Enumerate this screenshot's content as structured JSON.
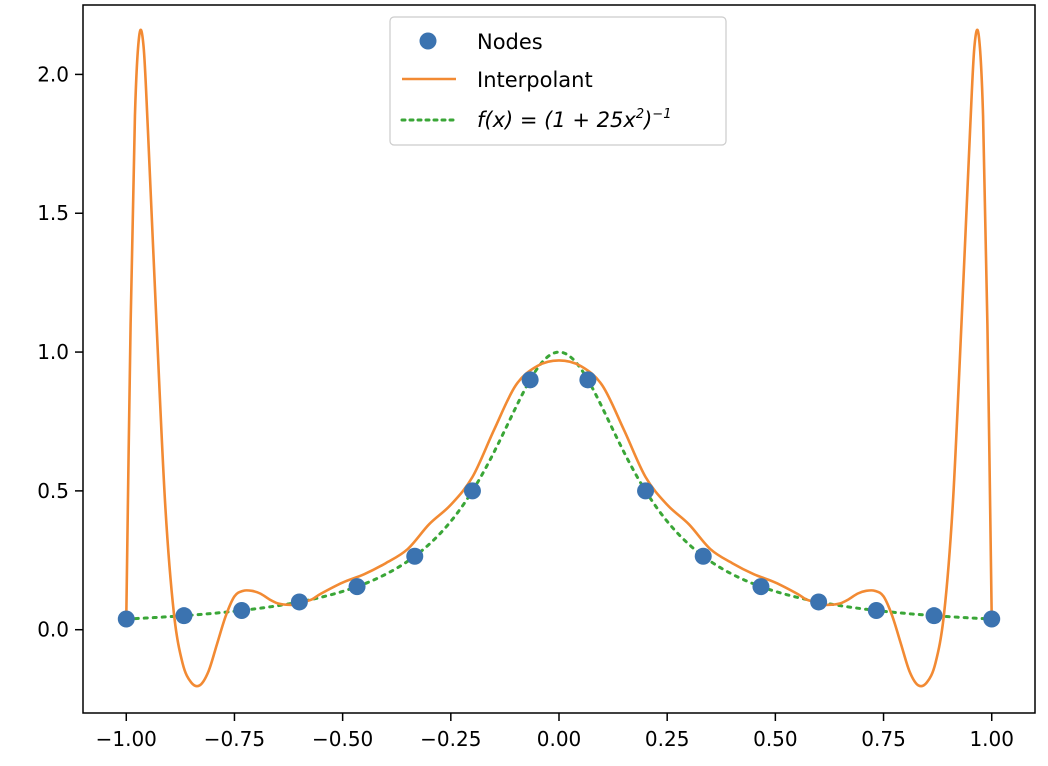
{
  "chart_data": {
    "type": "line",
    "title": "",
    "xlabel": "",
    "ylabel": "",
    "xlim": [
      -1.1,
      1.1
    ],
    "ylim": [
      -0.3,
      2.25
    ],
    "grid": false,
    "legend_position": "top-center",
    "x_ticks": [
      "−1.00",
      "−0.75",
      "−0.50",
      "−0.25",
      "0.00",
      "0.25",
      "0.50",
      "0.75",
      "1.00"
    ],
    "x_tick_values": [
      -1.0,
      -0.75,
      -0.5,
      -0.25,
      0.0,
      0.25,
      0.5,
      0.75,
      1.0
    ],
    "y_ticks": [
      "0.0",
      "0.5",
      "1.0",
      "1.5",
      "2.0"
    ],
    "y_tick_values": [
      0.0,
      0.5,
      1.0,
      1.5,
      2.0
    ],
    "series": [
      {
        "name": "Nodes",
        "kind": "scatter",
        "color": "#3b73b0",
        "x": [
          -1.0,
          -0.8667,
          -0.7333,
          -0.6,
          -0.4667,
          -0.3333,
          -0.2,
          -0.0667,
          0.0667,
          0.2,
          0.3333,
          0.4667,
          0.6,
          0.7333,
          0.8667,
          1.0
        ],
        "y": [
          0.0385,
          0.0505,
          0.0692,
          0.1,
          0.1552,
          0.2647,
          0.5,
          0.9,
          0.9,
          0.5,
          0.2647,
          0.1552,
          0.1,
          0.0692,
          0.0505,
          0.0385
        ]
      },
      {
        "name": "Interpolant",
        "kind": "line",
        "color": "#f28a33",
        "x": [
          -1.0,
          -0.99,
          -0.98,
          -0.97,
          -0.96,
          -0.95,
          -0.93,
          -0.91,
          -0.89,
          -0.87,
          -0.85,
          -0.83,
          -0.81,
          -0.79,
          -0.77,
          -0.75,
          -0.73,
          -0.71,
          -0.69,
          -0.67,
          -0.65,
          -0.63,
          -0.61,
          -0.59,
          -0.57,
          -0.55,
          -0.5,
          -0.45,
          -0.4,
          -0.35,
          -0.3,
          -0.25,
          -0.2,
          -0.15,
          -0.1,
          -0.05,
          0.0,
          0.05,
          0.1,
          0.15,
          0.2,
          0.25,
          0.3,
          0.35,
          0.4,
          0.45,
          0.5,
          0.55,
          0.57,
          0.59,
          0.61,
          0.63,
          0.65,
          0.67,
          0.69,
          0.71,
          0.73,
          0.75,
          0.77,
          0.79,
          0.81,
          0.83,
          0.85,
          0.87,
          0.89,
          0.91,
          0.93,
          0.95,
          0.96,
          0.97,
          0.98,
          0.99,
          1.0
        ],
        "y": [
          0.04,
          1.1,
          1.85,
          2.14,
          2.1,
          1.8,
          1.1,
          0.45,
          0.06,
          -0.12,
          -0.19,
          -0.2,
          -0.15,
          -0.05,
          0.05,
          0.12,
          0.14,
          0.14,
          0.13,
          0.11,
          0.095,
          0.09,
          0.09,
          0.1,
          0.11,
          0.13,
          0.17,
          0.2,
          0.24,
          0.29,
          0.38,
          0.45,
          0.55,
          0.72,
          0.88,
          0.95,
          0.97,
          0.95,
          0.88,
          0.72,
          0.55,
          0.45,
          0.38,
          0.29,
          0.24,
          0.2,
          0.17,
          0.13,
          0.11,
          0.1,
          0.09,
          0.09,
          0.095,
          0.11,
          0.13,
          0.14,
          0.14,
          0.12,
          0.05,
          -0.05,
          -0.15,
          -0.2,
          -0.19,
          -0.12,
          0.06,
          0.45,
          1.1,
          1.8,
          2.1,
          2.14,
          1.85,
          1.1,
          0.04
        ]
      },
      {
        "name": "f(x) = (1 + 25x²)⁻¹",
        "kind": "dotted-line",
        "color": "#3aa637",
        "function": "1/(1+25x^2)"
      }
    ]
  },
  "legend": {
    "nodes_label": "Nodes",
    "interpolant_label": "Interpolant",
    "function_prefix": "f(x) = (1 + 25x",
    "function_sq": "2",
    "function_mid": ")",
    "function_exp": "−1"
  },
  "colors": {
    "nodes": "#3b73b0",
    "interpolant": "#f28a33",
    "function": "#3aa637",
    "axes": "#000000",
    "background": "#ffffff"
  }
}
